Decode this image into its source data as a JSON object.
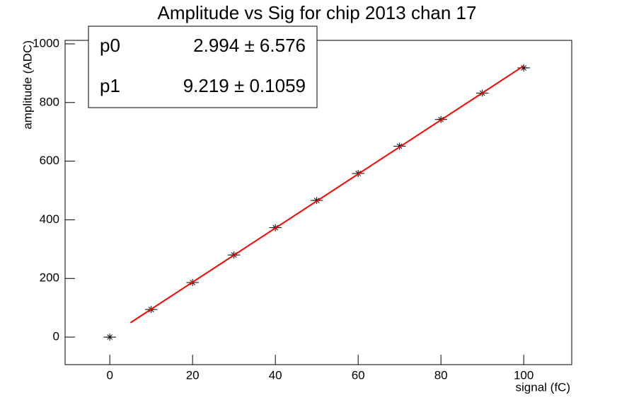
{
  "chart_data": {
    "type": "scatter",
    "title": "Amplitude vs Sig for chip 2013 chan 17",
    "x_label": "signal (fC)",
    "y_label": "amplitude (ADC)",
    "x": [
      0,
      10,
      20,
      30,
      40,
      50,
      60,
      70,
      80,
      90,
      100
    ],
    "series": [
      {
        "color": "#000000",
        "values": [
          0,
          94,
          186,
          280,
          373,
          466,
          558,
          651,
          742,
          832,
          918
        ],
        "xerr": [
          1.5,
          1.5,
          1.5,
          1.5,
          1.5,
          1.5,
          1.5,
          1.5,
          1.5,
          1.5,
          1.5
        ]
      }
    ],
    "fit": {
      "color": "#ff0000",
      "x": [
        5,
        100
      ],
      "values": [
        49.09,
        924.89
      ]
    },
    "stats": [
      {
        "name": "p0",
        "value": "2.994 ± 6.576"
      },
      {
        "name": "p1",
        "value": "9.219 ± 0.1059"
      }
    ],
    "xlim": [
      -10.8,
      111.6
    ],
    "ylim": [
      -94,
      1012
    ],
    "xticks": [
      0,
      20,
      40,
      60,
      80,
      100
    ],
    "yticks": [
      0,
      200,
      400,
      600,
      800,
      1000
    ]
  }
}
